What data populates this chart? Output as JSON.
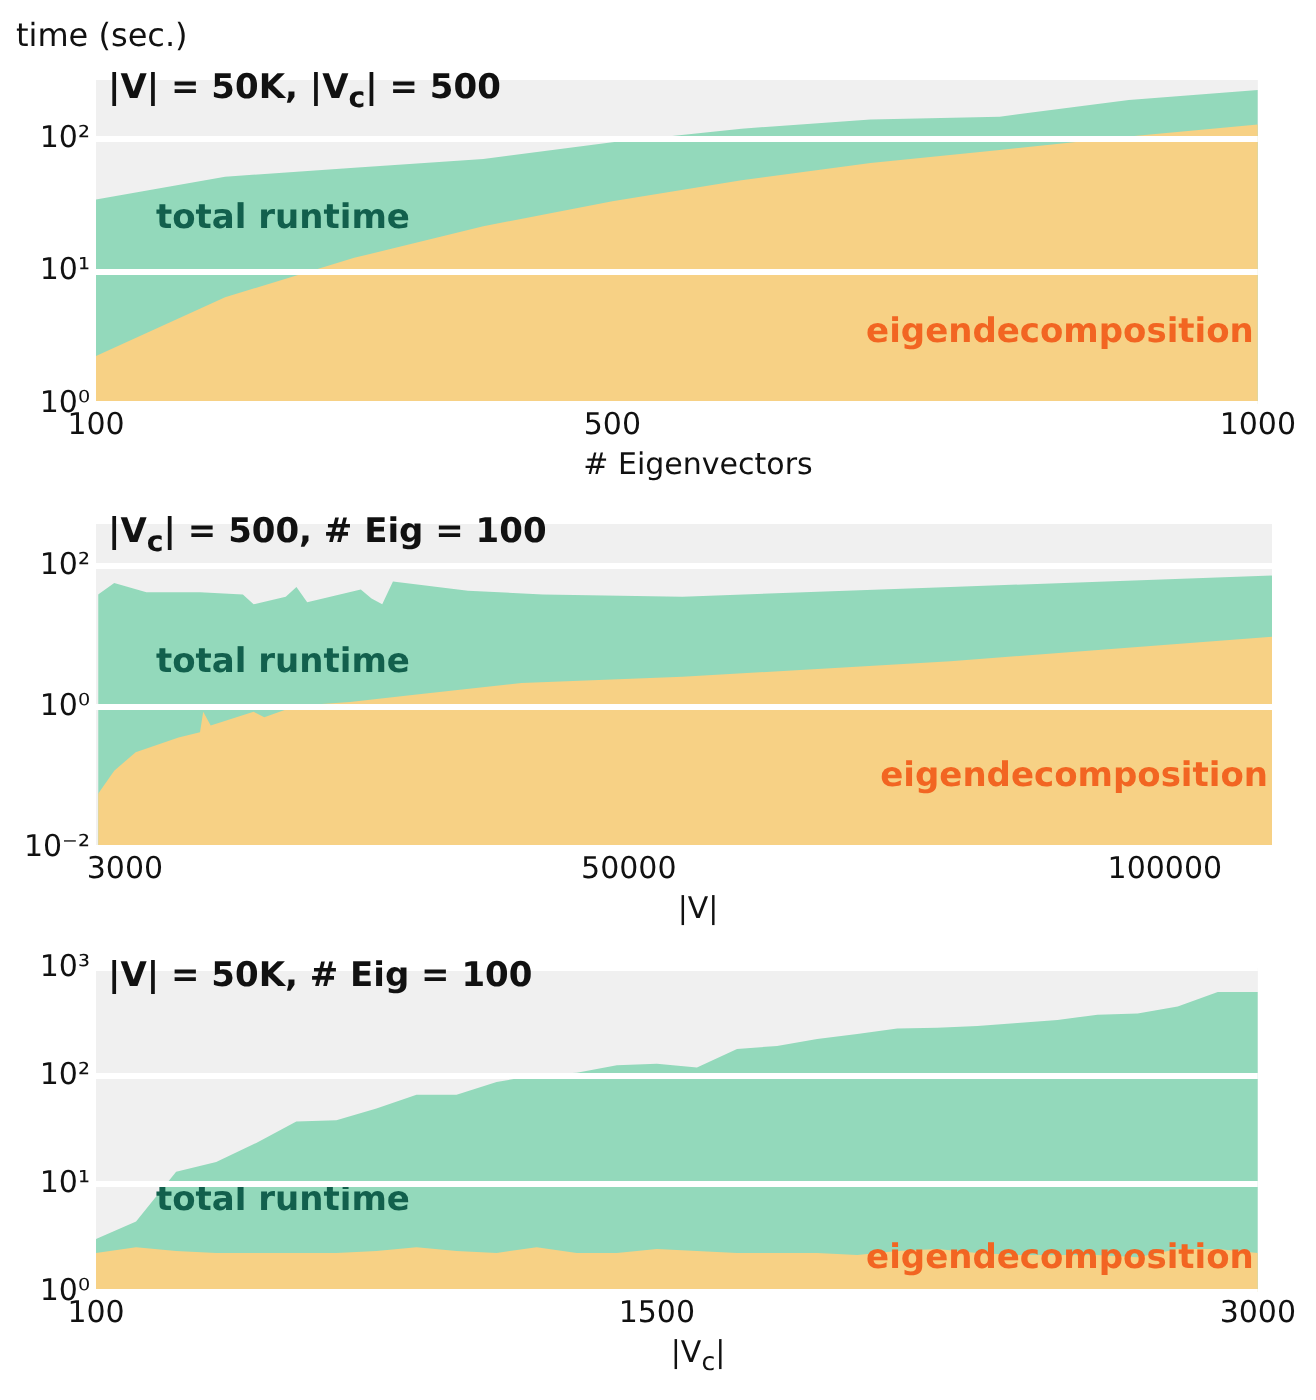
{
  "chart_data": [
    {
      "type": "area",
      "title": "|V| = 50K, |V$_{c}$| = 500",
      "xlabel": "# Eigenvectors",
      "ylabel": "time (sec.)",
      "log": "y",
      "grid": "y",
      "xlim": [
        100,
        1000
      ],
      "xticks": [
        100,
        500,
        1000
      ],
      "ylim": [
        1,
        280
      ],
      "yticks": [
        {
          "value": 1,
          "label": "10⁰"
        },
        {
          "value": 10,
          "label": "10¹"
        },
        {
          "value": 100,
          "label": "10²"
        }
      ],
      "x": [
        100,
        200,
        300,
        400,
        500,
        600,
        700,
        800,
        900,
        1000
      ],
      "series": [
        {
          "name": "total runtime",
          "color": "#93d9bb",
          "values": [
            35,
            52,
            61,
            71,
            95,
            120,
            141,
            148,
            198,
            235
          ]
        },
        {
          "name": "eigendecomposition",
          "color": "#f7d185",
          "values": [
            2.3,
            6.4,
            12.7,
            22,
            34,
            49,
            66,
            83,
            105,
            129
          ]
        }
      ]
    },
    {
      "type": "area",
      "title": "|V$_{c}$| = 500, # Eig = 100",
      "xlabel": "|V|",
      "log": "y",
      "grid": "y",
      "xlim": [
        300,
        110000
      ],
      "xticks": [
        3000,
        50000,
        100000
      ],
      "ylim": [
        0.01,
        400
      ],
      "yticks": [
        {
          "value": 0.01,
          "label": "10⁻²"
        },
        {
          "value": 1,
          "label": "10⁰"
        },
        {
          "value": 100,
          "label": "10²"
        }
      ],
      "series": [
        {
          "name": "total runtime",
          "color": "#93d9bb",
          "x": [
            500,
            2000,
            5000,
            10000,
            14000,
            15000,
            18000,
            19000,
            20000,
            25000,
            26000,
            27000,
            28000,
            35000,
            42000,
            55000,
            80000,
            110000
          ],
          "values": [
            40,
            58,
            43,
            43,
            40,
            29,
            37,
            51,
            31,
            47,
            35,
            29,
            61,
            45,
            40,
            37,
            51,
            74
          ]
        },
        {
          "name": "eigendecomposition",
          "color": "#f7d185",
          "x": [
            500,
            2000,
            4000,
            8000,
            10000,
            10300,
            11000,
            15000,
            16000,
            19000,
            24000,
            30000,
            40000,
            55000,
            80000,
            110000
          ],
          "values": [
            0.059,
            0.125,
            0.23,
            0.37,
            0.44,
            0.86,
            0.55,
            0.86,
            0.72,
            1.05,
            1.19,
            1.5,
            2.2,
            2.7,
            4.5,
            10
          ]
        }
      ]
    },
    {
      "type": "area",
      "title": "|V| = 50K, # Eig = 100",
      "xlabel": "|V$_{c}$|",
      "log": "y",
      "grid": "y",
      "xlim": [
        100,
        3000
      ],
      "xticks": [
        100,
        1500,
        3000
      ],
      "ylim": [
        1,
        1000
      ],
      "yticks": [
        {
          "value": 1,
          "label": "10⁰"
        },
        {
          "value": 10,
          "label": "10¹"
        },
        {
          "value": 100,
          "label": "10²"
        },
        {
          "value": 1000,
          "label": "10³"
        }
      ],
      "x": [
        100,
        200,
        300,
        400,
        500,
        600,
        700,
        800,
        900,
        1000,
        1100,
        1200,
        1300,
        1400,
        1500,
        1600,
        1700,
        1800,
        1900,
        2000,
        2100,
        2200,
        2300,
        2400,
        2500,
        2600,
        2700,
        2800,
        2900,
        3000
      ],
      "series": [
        {
          "name": "total runtime",
          "color": "#93d9bb",
          "values": [
            3.1,
            4.5,
            13,
            16,
            24,
            38,
            39,
            50,
            67,
            67,
            88,
            102,
            107,
            126,
            130,
            120,
            178,
            190,
            220,
            245,
            275,
            280,
            290,
            310,
            330,
            370,
            380,
            440,
            600,
            600
          ]
        },
        {
          "name": "eigendecomposition",
          "color": "#f7d185",
          "values": [
            2.3,
            2.6,
            2.4,
            2.3,
            2.3,
            2.3,
            2.3,
            2.4,
            2.6,
            2.4,
            2.3,
            2.6,
            2.3,
            2.3,
            2.5,
            2.4,
            2.3,
            2.3,
            2.3,
            2.2,
            2.4,
            2.5,
            2.3,
            2.2,
            2.2,
            2.2,
            2.1,
            2.5,
            2.5,
            2.3
          ]
        }
      ]
    }
  ]
}
